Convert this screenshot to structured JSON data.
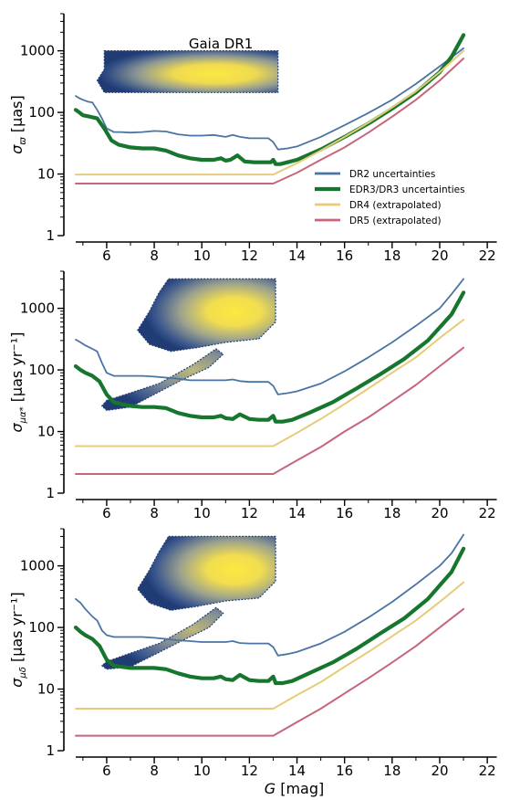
{
  "chart_data": [
    {
      "type": "line",
      "ylabel_symbol": "σ",
      "ylabel_sub": "ϖ",
      "ylabel_unit": "[μas]",
      "annotation": "Gaia DR1",
      "yscale": "log",
      "xlim": [
        4.2,
        22.8
      ],
      "ylim": [
        1,
        4000
      ],
      "xticks": [
        "6",
        "8",
        "10",
        "12",
        "14",
        "16",
        "18",
        "20",
        "22"
      ],
      "yticks": [
        "1",
        "10",
        "100",
        "1000"
      ],
      "legend_position": "lower-right",
      "series": [
        {
          "name": "DR2 uncertainties",
          "color": "#4a74a3",
          "x": [
            4.7,
            4.85,
            5.0,
            5.2,
            5.4,
            5.6,
            5.8,
            6.0,
            6.3,
            6.6,
            7.0,
            7.5,
            8.0,
            8.5,
            9.0,
            9.5,
            10.0,
            10.5,
            11.0,
            11.3,
            11.6,
            12.0,
            12.4,
            12.8,
            13.0,
            13.2,
            13.6,
            14.0,
            15.0,
            16.0,
            17.0,
            18.0,
            19.0,
            20.0,
            20.5,
            21.0
          ],
          "y": [
            185,
            170,
            160,
            150,
            145,
            110,
            80,
            55,
            48,
            48,
            47,
            48,
            50,
            49,
            44,
            42,
            42,
            43,
            40,
            43,
            40,
            38,
            38,
            38,
            33,
            25,
            26,
            28,
            40,
            62,
            98,
            160,
            290,
            560,
            780,
            1100
          ]
        },
        {
          "name": "EDR3/DR3 uncertainties",
          "color": "#16762e",
          "x": [
            4.7,
            4.85,
            5.0,
            5.3,
            5.6,
            5.9,
            6.2,
            6.5,
            7.0,
            7.5,
            8.0,
            8.5,
            9.0,
            9.5,
            10.0,
            10.5,
            10.8,
            11.0,
            11.2,
            11.5,
            11.8,
            12.2,
            12.6,
            12.9,
            13.0,
            13.1,
            13.3,
            13.6,
            14.0,
            15.0,
            16.0,
            17.0,
            18.0,
            19.0,
            20.0,
            20.5,
            21.0
          ],
          "y": [
            110,
            100,
            90,
            85,
            80,
            55,
            35,
            30,
            27,
            26,
            26,
            24,
            20,
            18,
            17,
            17,
            18,
            16.5,
            17,
            20,
            16,
            15.5,
            15.5,
            15.5,
            17,
            14.5,
            14.5,
            15.5,
            17,
            25,
            40,
            66,
            115,
            210,
            450,
            800,
            1800
          ]
        },
        {
          "name": "DR4 (extrapolated)",
          "color": "#e6cc7a",
          "x": [
            4.7,
            13.0,
            14.0,
            15.0,
            16.0,
            17.0,
            18.0,
            19.0,
            20.0,
            21.0
          ],
          "y": [
            9.8,
            9.8,
            15,
            24,
            40,
            68,
            120,
            220,
            450,
            1000
          ]
        },
        {
          "name": "DR5 (extrapolated)",
          "color": "#c7657a",
          "x": [
            4.7,
            13.0,
            14.0,
            15.0,
            16.0,
            17.0,
            18.0,
            19.0,
            20.0,
            21.0
          ],
          "y": [
            7,
            7,
            10.5,
            17,
            27,
            47,
            85,
            160,
            330,
            750
          ]
        }
      ]
    },
    {
      "type": "line",
      "ylabel_symbol": "σ",
      "ylabel_sub": "μα*",
      "ylabel_unit": "[μas yr⁻¹]",
      "yscale": "log",
      "xlim": [
        4.2,
        22.8
      ],
      "ylim": [
        1,
        4000
      ],
      "xticks": [
        "6",
        "8",
        "10",
        "12",
        "14",
        "16",
        "18",
        "20",
        "22"
      ],
      "yticks": [
        "1",
        "10",
        "100",
        "1000"
      ],
      "series": [
        {
          "name": "DR2 uncertainties",
          "color": "#4a74a3",
          "x": [
            4.7,
            4.9,
            5.1,
            5.4,
            5.6,
            5.8,
            6.0,
            6.3,
            6.6,
            7.0,
            7.5,
            8.0,
            8.5,
            9.0,
            9.5,
            10.0,
            10.5,
            11.0,
            11.3,
            11.6,
            12.0,
            12.4,
            12.8,
            13.0,
            13.2,
            13.6,
            14.0,
            15.0,
            16.0,
            17.0,
            18.0,
            19.0,
            20.0,
            20.5,
            21.0
          ],
          "y": [
            310,
            280,
            250,
            220,
            200,
            130,
            90,
            80,
            80,
            80,
            80,
            78,
            75,
            72,
            68,
            68,
            68,
            68,
            70,
            66,
            64,
            64,
            64,
            55,
            40,
            42,
            45,
            60,
            95,
            160,
            280,
            520,
            1000,
            1700,
            3000
          ]
        },
        {
          "name": "EDR3/DR3 uncertainties",
          "color": "#16762e",
          "x": [
            4.7,
            4.9,
            5.1,
            5.4,
            5.7,
            6.0,
            6.3,
            6.6,
            7.0,
            7.5,
            8.0,
            8.5,
            9.0,
            9.5,
            10.0,
            10.5,
            10.8,
            11.0,
            11.3,
            11.6,
            12.0,
            12.4,
            12.8,
            13.0,
            13.1,
            13.4,
            13.8,
            14.5,
            15.5,
            16.5,
            17.5,
            18.5,
            19.5,
            20.5,
            21.0
          ],
          "y": [
            115,
            100,
            90,
            80,
            65,
            40,
            30,
            28,
            26,
            25,
            25,
            24,
            20,
            18,
            17,
            17,
            18,
            16.5,
            16,
            19,
            16,
            15.5,
            15.5,
            18,
            14.5,
            14.5,
            15.5,
            20,
            30,
            50,
            85,
            150,
            300,
            800,
            1800
          ]
        },
        {
          "name": "DR4 (extrapolated)",
          "color": "#e6cc7a",
          "x": [
            4.7,
            13.0,
            14.0,
            15.0,
            16.0,
            17.0,
            18.0,
            19.0,
            20.0,
            21.0
          ],
          "y": [
            5.8,
            5.8,
            9.5,
            16,
            28,
            50,
            90,
            160,
            330,
            650
          ]
        },
        {
          "name": "DR5 (extrapolated)",
          "color": "#c7657a",
          "x": [
            4.7,
            13.0,
            14.0,
            15.0,
            16.0,
            17.0,
            18.0,
            19.0,
            20.0,
            21.0
          ],
          "y": [
            2.05,
            2.05,
            3.4,
            5.6,
            10,
            17,
            31,
            57,
            115,
            230
          ]
        }
      ]
    },
    {
      "type": "line",
      "ylabel_symbol": "σ",
      "ylabel_sub": "μδ",
      "ylabel_unit": "[μas yr⁻¹]",
      "xlabel": "G [mag]",
      "yscale": "log",
      "xlim": [
        4.2,
        22.8
      ],
      "ylim": [
        1,
        4000
      ],
      "xticks": [
        "6",
        "8",
        "10",
        "12",
        "14",
        "16",
        "18",
        "20",
        "22"
      ],
      "yticks": [
        "1",
        "10",
        "100",
        "1000"
      ],
      "series": [
        {
          "name": "DR2 uncertainties",
          "color": "#4a74a3",
          "x": [
            4.7,
            4.9,
            5.1,
            5.4,
            5.6,
            5.8,
            6.0,
            6.3,
            6.6,
            7.0,
            7.5,
            8.0,
            8.5,
            9.0,
            9.5,
            10.0,
            10.5,
            11.0,
            11.3,
            11.6,
            12.0,
            12.4,
            12.8,
            13.0,
            13.2,
            13.6,
            14.0,
            15.0,
            16.0,
            17.0,
            18.0,
            19.0,
            20.0,
            20.5,
            21.0
          ],
          "y": [
            290,
            250,
            200,
            150,
            130,
            90,
            75,
            70,
            70,
            70,
            70,
            68,
            65,
            62,
            60,
            58,
            58,
            58,
            60,
            56,
            55,
            55,
            55,
            48,
            35,
            37,
            40,
            55,
            85,
            145,
            260,
            500,
            1000,
            1600,
            3200
          ]
        },
        {
          "name": "EDR3/DR3 uncertainties",
          "color": "#16762e",
          "x": [
            4.7,
            4.9,
            5.1,
            5.4,
            5.7,
            6.0,
            6.3,
            6.6,
            7.0,
            7.5,
            8.0,
            8.5,
            9.0,
            9.5,
            10.0,
            10.5,
            10.8,
            11.0,
            11.3,
            11.6,
            12.0,
            12.4,
            12.8,
            13.0,
            13.1,
            13.4,
            13.8,
            14.5,
            15.5,
            16.5,
            17.5,
            18.5,
            19.5,
            20.5,
            21.0
          ],
          "y": [
            100,
            85,
            75,
            65,
            50,
            30,
            24,
            23,
            22,
            22,
            22,
            21,
            18,
            16,
            15,
            15,
            16,
            14.5,
            14,
            17,
            14,
            13.5,
            13.5,
            16,
            12.5,
            12.5,
            13.5,
            18,
            27,
            45,
            80,
            140,
            290,
            800,
            1900
          ]
        },
        {
          "name": "DR4 (extrapolated)",
          "color": "#e6cc7a",
          "x": [
            4.7,
            13.0,
            14.0,
            15.0,
            16.0,
            17.0,
            18.0,
            19.0,
            20.0,
            21.0
          ],
          "y": [
            4.8,
            4.8,
            8,
            13,
            23,
            40,
            72,
            130,
            260,
            540
          ]
        },
        {
          "name": "DR5 (extrapolated)",
          "color": "#c7657a",
          "x": [
            4.7,
            13.0,
            14.0,
            15.0,
            16.0,
            17.0,
            18.0,
            19.0,
            20.0,
            21.0
          ],
          "y": [
            1.75,
            1.75,
            2.9,
            4.8,
            8.5,
            15,
            27,
            50,
            100,
            200
          ]
        }
      ]
    }
  ]
}
